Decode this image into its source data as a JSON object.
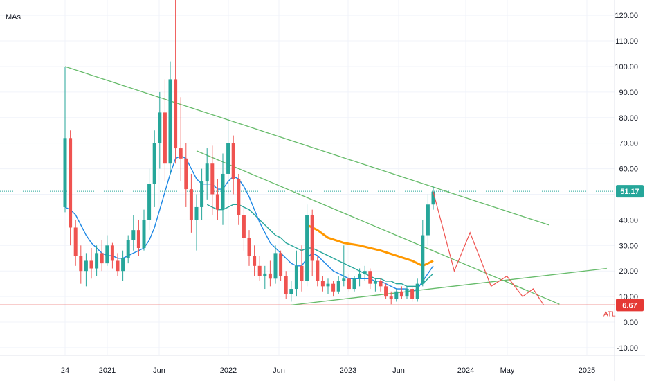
{
  "chart_data": {
    "type": "candlestick",
    "indicator_label": "MAs",
    "y_ticks": [
      "120.00",
      "110.00",
      "100.00",
      "90.00",
      "80.00",
      "70.00",
      "60.00",
      "50.00",
      "40.00",
      "30.00",
      "20.00",
      "10.00",
      "0.00",
      "-10.00"
    ],
    "y_tick_values": [
      120,
      110,
      100,
      90,
      80,
      70,
      60,
      50,
      40,
      30,
      20,
      10,
      0,
      -10
    ],
    "x_ticks": [
      "24",
      "2021",
      "Jun",
      "2022",
      "Jun",
      "2023",
      "Jun",
      "2024",
      "May",
      "2025"
    ],
    "ylim": [
      -13,
      126
    ],
    "last_price": {
      "label": "51.17",
      "value": 51.17
    },
    "atl": {
      "label": "6.67",
      "value": 6.67,
      "tag": "ATL"
    },
    "colors": {
      "up": "#26a69a",
      "down": "#ef5350",
      "trendline": "#66bb6a",
      "ma_blue": "#1e88e5",
      "ma_teal": "#26a69a",
      "ma_orange": "#ff9800",
      "projection": "#ef5350",
      "atl_line": "#e53935"
    },
    "candles": [
      {
        "o": 45,
        "h": 100,
        "l": 43,
        "c": 72
      },
      {
        "o": 72,
        "h": 75,
        "l": 30,
        "c": 37
      },
      {
        "o": 37,
        "h": 40,
        "l": 22,
        "c": 26
      },
      {
        "o": 26,
        "h": 30,
        "l": 15,
        "c": 20
      },
      {
        "o": 20,
        "h": 27,
        "l": 14,
        "c": 24
      },
      {
        "o": 24,
        "h": 29,
        "l": 17,
        "c": 21
      },
      {
        "o": 21,
        "h": 30,
        "l": 18,
        "c": 27
      },
      {
        "o": 27,
        "h": 32,
        "l": 20,
        "c": 23
      },
      {
        "o": 23,
        "h": 34,
        "l": 22,
        "c": 30
      },
      {
        "o": 30,
        "h": 31,
        "l": 21,
        "c": 24
      },
      {
        "o": 24,
        "h": 27,
        "l": 18,
        "c": 20
      },
      {
        "o": 20,
        "h": 28,
        "l": 16,
        "c": 25
      },
      {
        "o": 25,
        "h": 34,
        "l": 23,
        "c": 32
      },
      {
        "o": 32,
        "h": 42,
        "l": 28,
        "c": 36
      },
      {
        "o": 36,
        "h": 40,
        "l": 26,
        "c": 29
      },
      {
        "o": 29,
        "h": 44,
        "l": 28,
        "c": 40
      },
      {
        "o": 40,
        "h": 60,
        "l": 36,
        "c": 54
      },
      {
        "o": 54,
        "h": 75,
        "l": 45,
        "c": 70
      },
      {
        "o": 70,
        "h": 90,
        "l": 60,
        "c": 82
      },
      {
        "o": 82,
        "h": 95,
        "l": 55,
        "c": 62
      },
      {
        "o": 62,
        "h": 102,
        "l": 58,
        "c": 95
      },
      {
        "o": 95,
        "h": 126,
        "l": 62,
        "c": 68
      },
      {
        "o": 68,
        "h": 88,
        "l": 55,
        "c": 64
      },
      {
        "o": 64,
        "h": 70,
        "l": 45,
        "c": 52
      },
      {
        "o": 52,
        "h": 58,
        "l": 35,
        "c": 40
      },
      {
        "o": 40,
        "h": 50,
        "l": 28,
        "c": 45
      },
      {
        "o": 45,
        "h": 60,
        "l": 40,
        "c": 55
      },
      {
        "o": 55,
        "h": 68,
        "l": 48,
        "c": 62
      },
      {
        "o": 62,
        "h": 69,
        "l": 42,
        "c": 50
      },
      {
        "o": 50,
        "h": 56,
        "l": 40,
        "c": 44
      },
      {
        "o": 44,
        "h": 66,
        "l": 38,
        "c": 58
      },
      {
        "o": 58,
        "h": 80,
        "l": 50,
        "c": 70
      },
      {
        "o": 70,
        "h": 73,
        "l": 50,
        "c": 56
      },
      {
        "o": 56,
        "h": 58,
        "l": 38,
        "c": 42
      },
      {
        "o": 42,
        "h": 45,
        "l": 28,
        "c": 33
      },
      {
        "o": 33,
        "h": 36,
        "l": 22,
        "c": 26
      },
      {
        "o": 26,
        "h": 30,
        "l": 18,
        "c": 22
      },
      {
        "o": 22,
        "h": 26,
        "l": 16,
        "c": 18
      },
      {
        "o": 18,
        "h": 22,
        "l": 13,
        "c": 19
      },
      {
        "o": 19,
        "h": 24,
        "l": 14,
        "c": 17
      },
      {
        "o": 17,
        "h": 30,
        "l": 15,
        "c": 27
      },
      {
        "o": 27,
        "h": 28,
        "l": 16,
        "c": 18
      },
      {
        "o": 18,
        "h": 20,
        "l": 9,
        "c": 11
      },
      {
        "o": 11,
        "h": 16,
        "l": 8,
        "c": 13
      },
      {
        "o": 13,
        "h": 28,
        "l": 10,
        "c": 22
      },
      {
        "o": 22,
        "h": 30,
        "l": 12,
        "c": 16
      },
      {
        "o": 16,
        "h": 46,
        "l": 14,
        "c": 42
      },
      {
        "o": 42,
        "h": 44,
        "l": 18,
        "c": 24
      },
      {
        "o": 24,
        "h": 26,
        "l": 14,
        "c": 16
      },
      {
        "o": 16,
        "h": 18,
        "l": 12,
        "c": 14
      },
      {
        "o": 14,
        "h": 17,
        "l": 11,
        "c": 15
      },
      {
        "o": 15,
        "h": 16,
        "l": 10,
        "c": 12
      },
      {
        "o": 12,
        "h": 18,
        "l": 11,
        "c": 16
      },
      {
        "o": 16,
        "h": 30,
        "l": 14,
        "c": 17
      },
      {
        "o": 17,
        "h": 19,
        "l": 12,
        "c": 13
      },
      {
        "o": 13,
        "h": 18,
        "l": 12,
        "c": 17
      },
      {
        "o": 17,
        "h": 21,
        "l": 14,
        "c": 19
      },
      {
        "o": 19,
        "h": 22,
        "l": 16,
        "c": 20
      },
      {
        "o": 20,
        "h": 21,
        "l": 13,
        "c": 15
      },
      {
        "o": 15,
        "h": 17,
        "l": 12,
        "c": 16
      },
      {
        "o": 16,
        "h": 17,
        "l": 12,
        "c": 14
      },
      {
        "o": 14,
        "h": 15,
        "l": 9,
        "c": 10
      },
      {
        "o": 10,
        "h": 12,
        "l": 7,
        "c": 9
      },
      {
        "o": 9,
        "h": 13,
        "l": 8,
        "c": 12
      },
      {
        "o": 12,
        "h": 14,
        "l": 9,
        "c": 10
      },
      {
        "o": 10,
        "h": 14,
        "l": 9,
        "c": 13
      },
      {
        "o": 13,
        "h": 14,
        "l": 8,
        "c": 9
      },
      {
        "o": 9,
        "h": 17,
        "l": 8,
        "c": 15
      },
      {
        "o": 15,
        "h": 40,
        "l": 14,
        "c": 34
      },
      {
        "o": 34,
        "h": 50,
        "l": 30,
        "c": 46
      },
      {
        "o": 46,
        "h": 53,
        "l": 44,
        "c": 51
      }
    ],
    "ma_fast": [
      45,
      44,
      42,
      38,
      34,
      31,
      29,
      27,
      26,
      26,
      25,
      25,
      26,
      27,
      28,
      29,
      32,
      37,
      44,
      51,
      58,
      64,
      65,
      64,
      60,
      56,
      54,
      54,
      54,
      52,
      52,
      55,
      57,
      56,
      53,
      49,
      44,
      39,
      35,
      31,
      29,
      27,
      25,
      23,
      22,
      22,
      25,
      27,
      26,
      24,
      22,
      20,
      19,
      18,
      17,
      17,
      17,
      17,
      17,
      16,
      16,
      15,
      14,
      13,
      13,
      13,
      12,
      13,
      16,
      19,
      22
    ],
    "ma_slow": [
      null,
      null,
      null,
      null,
      null,
      null,
      null,
      null,
      null,
      null,
      null,
      null,
      null,
      null,
      null,
      null,
      null,
      null,
      null,
      null,
      null,
      null,
      null,
      null,
      null,
      null,
      null,
      46,
      45,
      44,
      44,
      45,
      46,
      46,
      45,
      44,
      42,
      40,
      38,
      36,
      34,
      33,
      31,
      30,
      29,
      28,
      29,
      29,
      28,
      27,
      26,
      25,
      24,
      23,
      22,
      21,
      20,
      19,
      18,
      17,
      17,
      16,
      16,
      15,
      15,
      14,
      14,
      14,
      15,
      17,
      19
    ],
    "ma_long": [
      {
        "i": 46,
        "v": 38
      },
      {
        "i": 48,
        "v": 36
      },
      {
        "i": 50,
        "v": 33
      },
      {
        "i": 53,
        "v": 31
      },
      {
        "i": 56,
        "v": 30
      },
      {
        "i": 60,
        "v": 28
      },
      {
        "i": 63,
        "v": 26
      },
      {
        "i": 66,
        "v": 24
      },
      {
        "i": 68,
        "v": 22
      },
      {
        "i": 70,
        "v": 24
      }
    ],
    "trendlines": [
      {
        "a": {
          "i": 0,
          "v": 100
        },
        "b": {
          "i": 92,
          "v": 38
        }
      },
      {
        "a": {
          "i": 25,
          "v": 67
        },
        "b": {
          "i": 94,
          "v": 7
        }
      },
      {
        "a": {
          "i": 43,
          "v": 6.67
        },
        "b": {
          "i": 103,
          "v": 21
        }
      }
    ],
    "projection": [
      {
        "i": 70,
        "v": 51
      },
      {
        "i": 74,
        "v": 20
      },
      {
        "i": 77,
        "v": 35
      },
      {
        "i": 81,
        "v": 14
      },
      {
        "i": 84,
        "v": 18
      },
      {
        "i": 87,
        "v": 10
      },
      {
        "i": 89,
        "v": 13
      },
      {
        "i": 91,
        "v": 6.67
      }
    ]
  }
}
